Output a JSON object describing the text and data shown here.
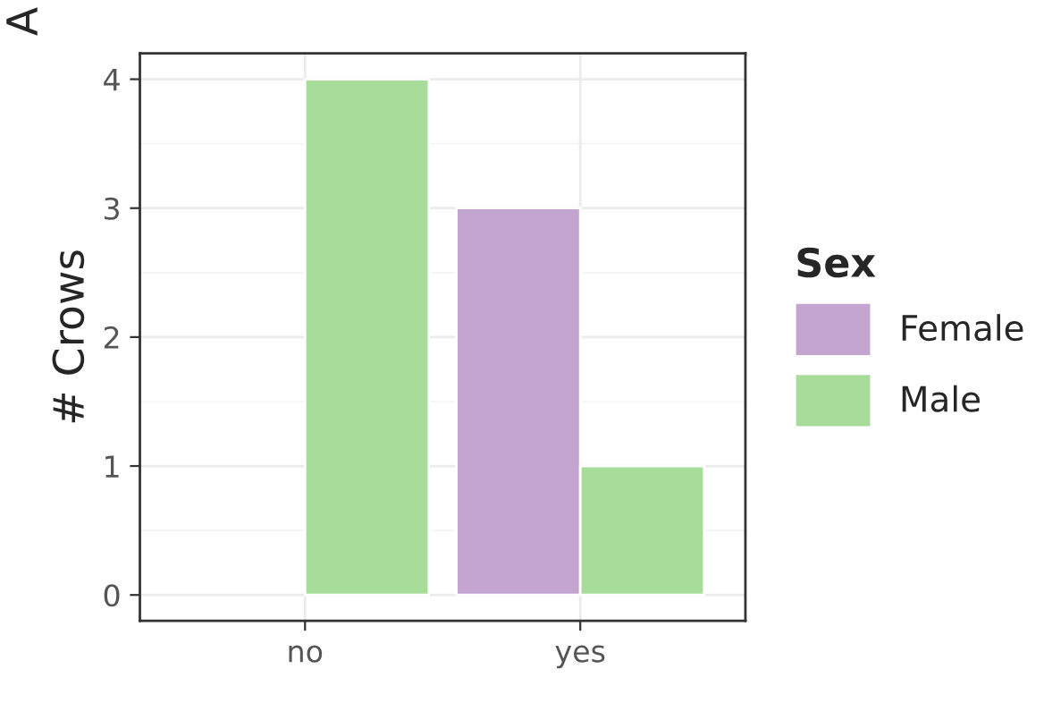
{
  "chart_data": {
    "type": "bar",
    "ylabel": "# Crows",
    "legend_title": "Sex",
    "categories": [
      "no",
      "yes"
    ],
    "series": [
      {
        "name": "Female",
        "color": "#c3a5d0",
        "values": [
          null,
          3
        ]
      },
      {
        "name": "Male",
        "color": "#a8dc9a",
        "values": [
          4,
          1
        ]
      }
    ],
    "ylim": [
      -0.2,
      4.2
    ],
    "yticks": [
      0,
      1,
      2,
      3,
      4
    ],
    "grid": true,
    "legend": "right",
    "annotations": [
      "A"
    ]
  }
}
